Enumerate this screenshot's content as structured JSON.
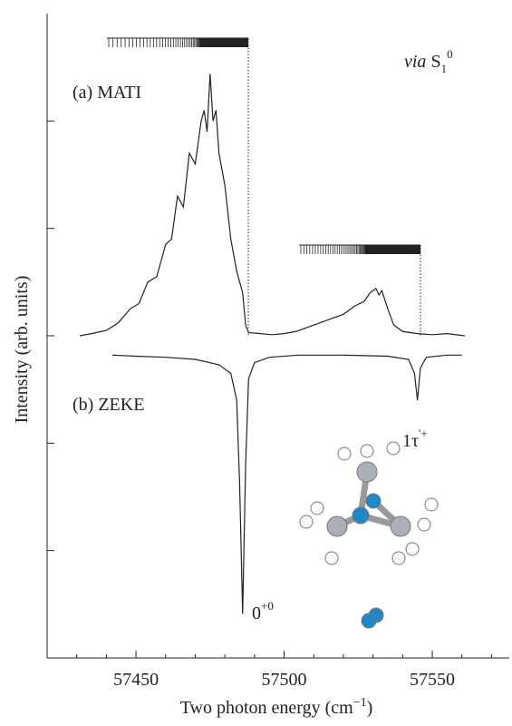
{
  "chart_data": {
    "type": "line",
    "y_label": "Intensity (arb. units)",
    "x_label": {
      "text": "Two photon energy (cm",
      "sup": "−1",
      "end": ")"
    },
    "annotations": [
      {
        "text": "(a) MATI"
      },
      {
        "text": "(b) ZEKE"
      },
      {
        "text": "0",
        "sup": "+0"
      },
      {
        "text": "1τ",
        "sup": "'+"
      },
      {
        "italic": "via",
        "text": " S",
        "sub": "1",
        "sup": "0"
      }
    ],
    "xlim": [
      57420,
      57576
    ],
    "ylim": [
      -3,
      3
    ],
    "xticks": [
      57450,
      57500,
      57550
    ],
    "xminorticks": [
      57430,
      57440,
      57460,
      57470,
      57480,
      57490,
      57510,
      57520,
      57530,
      57540,
      57560,
      57570
    ],
    "yticks": [
      -2,
      -1,
      0,
      1,
      2
    ],
    "series": [
      {
        "color": "#222222",
        "x": [
          57431,
          57435,
          57440,
          57444,
          57448,
          57451,
          57454,
          57457,
          57460,
          57462,
          57464,
          57466,
          57468,
          57470,
          57472,
          57473,
          57474,
          57475,
          57476,
          57477,
          57478,
          57480,
          57482,
          57484,
          57486,
          57487,
          57488,
          57492,
          57496,
          57500,
          57504,
          57508,
          57512,
          57516,
          57520,
          57524,
          57527,
          57529,
          57531,
          57532,
          57533,
          57535,
          57537,
          57540,
          57545,
          57550,
          57555,
          57561
        ],
        "values": [
          0,
          0.02,
          0.05,
          0.12,
          0.25,
          0.3,
          0.5,
          0.55,
          0.85,
          0.9,
          1.3,
          1.2,
          1.7,
          1.6,
          2.0,
          2.1,
          1.9,
          2.44,
          2.0,
          2.1,
          1.7,
          1.4,
          0.9,
          0.6,
          0.4,
          0.1,
          0.03,
          0.02,
          0.01,
          0.02,
          0.04,
          0.08,
          0.12,
          0.16,
          0.2,
          0.28,
          0.32,
          0.4,
          0.44,
          0.38,
          0.42,
          0.25,
          0.1,
          0.04,
          0.02,
          0.01,
          0.02,
          0
        ]
      },
      {
        "color": "#222222",
        "x": [
          57442,
          57450,
          57460,
          57470,
          57478,
          57482,
          57484,
          57485,
          57486,
          57487,
          57488,
          57490,
          57495,
          57505,
          57520,
          57535,
          57542,
          57544,
          57545,
          57546,
          57548,
          57555,
          57560
        ],
        "values": [
          -0.18,
          -0.19,
          -0.2,
          -0.22,
          -0.27,
          -0.35,
          -0.6,
          -1.4,
          -2.59,
          -1.2,
          -0.4,
          -0.25,
          -0.2,
          -0.18,
          -0.18,
          -0.19,
          -0.22,
          -0.35,
          -0.6,
          -0.3,
          -0.2,
          -0.18,
          -0.18
        ]
      }
    ]
  }
}
